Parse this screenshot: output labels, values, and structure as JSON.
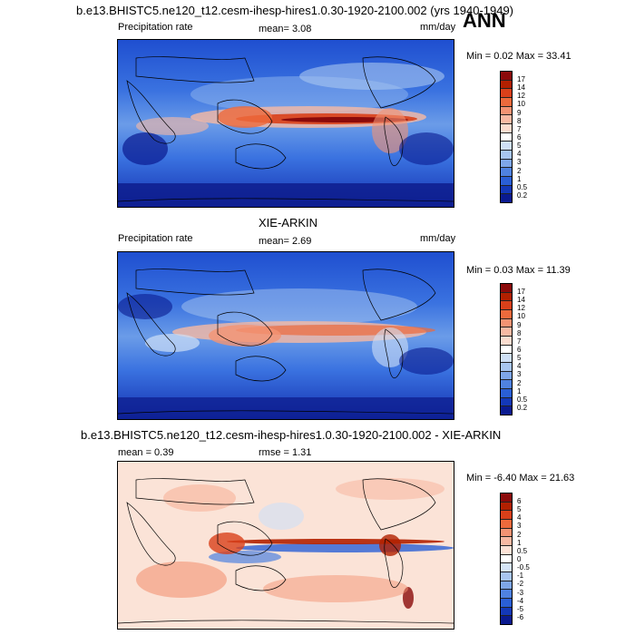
{
  "header": {
    "title": "b.e13.BHISTC5.ne120_t12.cesm-ihesp-hires1.0.30-1920-2100.002 (yrs 1940-1949)",
    "season": "ANN"
  },
  "panel1": {
    "left": "Precipitation rate",
    "mean": "mean=  3.08",
    "units": "mm/day",
    "minmax": "Min =  0.02 Max =  33.41",
    "colorbar": [
      "17",
      "14",
      "12",
      "10",
      "9",
      "8",
      "7",
      "6",
      "5",
      "4",
      "3",
      "2",
      "1",
      "0.5",
      "0.2"
    ]
  },
  "panel2": {
    "title": "XIE-ARKIN",
    "left": "Precipitation rate",
    "mean": "mean=  2.69",
    "units": "mm/day",
    "minmax": "Min =  0.03 Max =  11.39",
    "colorbar": [
      "17",
      "14",
      "12",
      "10",
      "9",
      "8",
      "7",
      "6",
      "5",
      "4",
      "3",
      "2",
      "1",
      "0.5",
      "0.2"
    ]
  },
  "panel3": {
    "title": "b.e13.BHISTC5.ne120_t12.cesm-ihesp-hires1.0.30-1920-2100.002 - XIE-ARKIN",
    "mean": "mean =  0.39",
    "rmse": "rmse =  1.31",
    "minmax": "Min =  -6.40 Max =  21.63",
    "colorbar": [
      "6",
      "5",
      "4",
      "3",
      "2",
      "1",
      "0.5",
      "0",
      "-0.5",
      "-1",
      "-2",
      "-3",
      "-4",
      "-5",
      "-6"
    ]
  },
  "colors": {
    "precip_scale": [
      "#8b0a0a",
      "#b22000",
      "#d9401a",
      "#ed6a3c",
      "#f49373",
      "#f8b9a3",
      "#fbdccf",
      "#ffffff",
      "#cfe0f6",
      "#a8c6f0",
      "#7ea6e8",
      "#4f82e0",
      "#2a5fd6",
      "#1338b8",
      "#0a1a90"
    ],
    "diff_scale": [
      "#8b0a0a",
      "#b22000",
      "#d9401a",
      "#ed6a3c",
      "#f49373",
      "#f8b9a3",
      "#fde2d6",
      "#ffffff",
      "#d6e5f8",
      "#a8c6f0",
      "#7ea6e8",
      "#4f82e0",
      "#2a5fd6",
      "#1338b8",
      "#0a1a90"
    ]
  }
}
